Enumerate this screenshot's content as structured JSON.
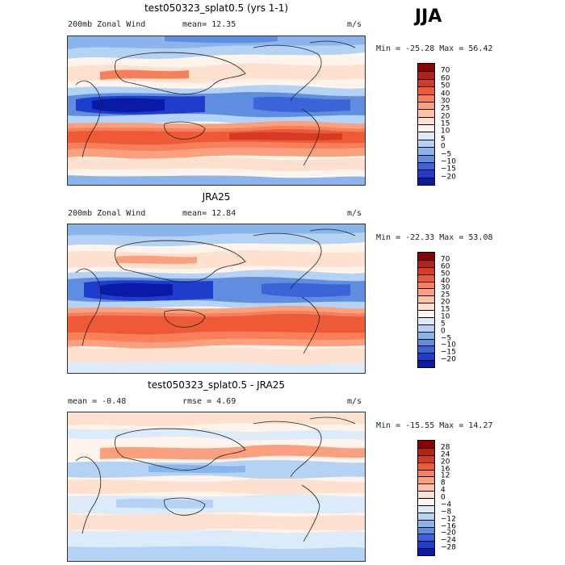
{
  "season": "JJA",
  "units": "m/s",
  "panels": [
    {
      "title": "test050323_splat0.5 (yrs 1-1)",
      "label_left": "200mb Zonal Wind",
      "label_mid": "mean=  12.35",
      "units": "m/s",
      "minmax": "Min = -25.28 Max =  56.42",
      "colorbar_ticks": [
        "70",
        "60",
        "50",
        "40",
        "30",
        "25",
        "20",
        "15",
        "10",
        "5",
        "0",
        "−5",
        "−10",
        "−15",
        "−20"
      ],
      "colors": [
        "#8b0000",
        "#b22218",
        "#d63a22",
        "#ee5a36",
        "#f7805a",
        "#fba07f",
        "#fdc1a5",
        "#fde0cd",
        "#fff4ec",
        "#dcebfa",
        "#b4d2f3",
        "#8ab4ec",
        "#5f8ee1",
        "#3b64d8",
        "#1f3dcd",
        "#0a1aa6"
      ]
    },
    {
      "title": "JRA25",
      "label_left": "200mb Zonal Wind",
      "label_mid": "mean=  12.84",
      "units": "m/s",
      "minmax": "Min = -22.33 Max =  53.08",
      "colorbar_ticks": [
        "70",
        "60",
        "50",
        "40",
        "30",
        "25",
        "20",
        "15",
        "10",
        "5",
        "0",
        "−5",
        "−10",
        "−15",
        "−20"
      ],
      "colors": [
        "#8b0000",
        "#b22218",
        "#d63a22",
        "#ee5a36",
        "#f7805a",
        "#fba07f",
        "#fdc1a5",
        "#fde0cd",
        "#fff4ec",
        "#dcebfa",
        "#b4d2f3",
        "#8ab4ec",
        "#5f8ee1",
        "#3b64d8",
        "#1f3dcd",
        "#0a1aa6"
      ]
    },
    {
      "title": "test050323_splat0.5 - JRA25",
      "label_left": "mean =  -0.48",
      "label_mid": "rmse =   4.69",
      "units": "m/s",
      "minmax": "Min = -15.55 Max =  14.27",
      "colorbar_ticks": [
        "28",
        "24",
        "20",
        "16",
        "12",
        "8",
        "4",
        "0",
        "−4",
        "−8",
        "−12",
        "−16",
        "−20",
        "−24",
        "−28"
      ],
      "colors": [
        "#8b0000",
        "#b22218",
        "#d63a22",
        "#ee5a36",
        "#f7805a",
        "#fba07f",
        "#fdc1a5",
        "#fde0cd",
        "#fff4ec",
        "#dcebfa",
        "#b4d2f3",
        "#8ab4ec",
        "#5f8ee1",
        "#3b64d8",
        "#1f3dcd",
        "#0a1aa6"
      ]
    }
  ]
}
